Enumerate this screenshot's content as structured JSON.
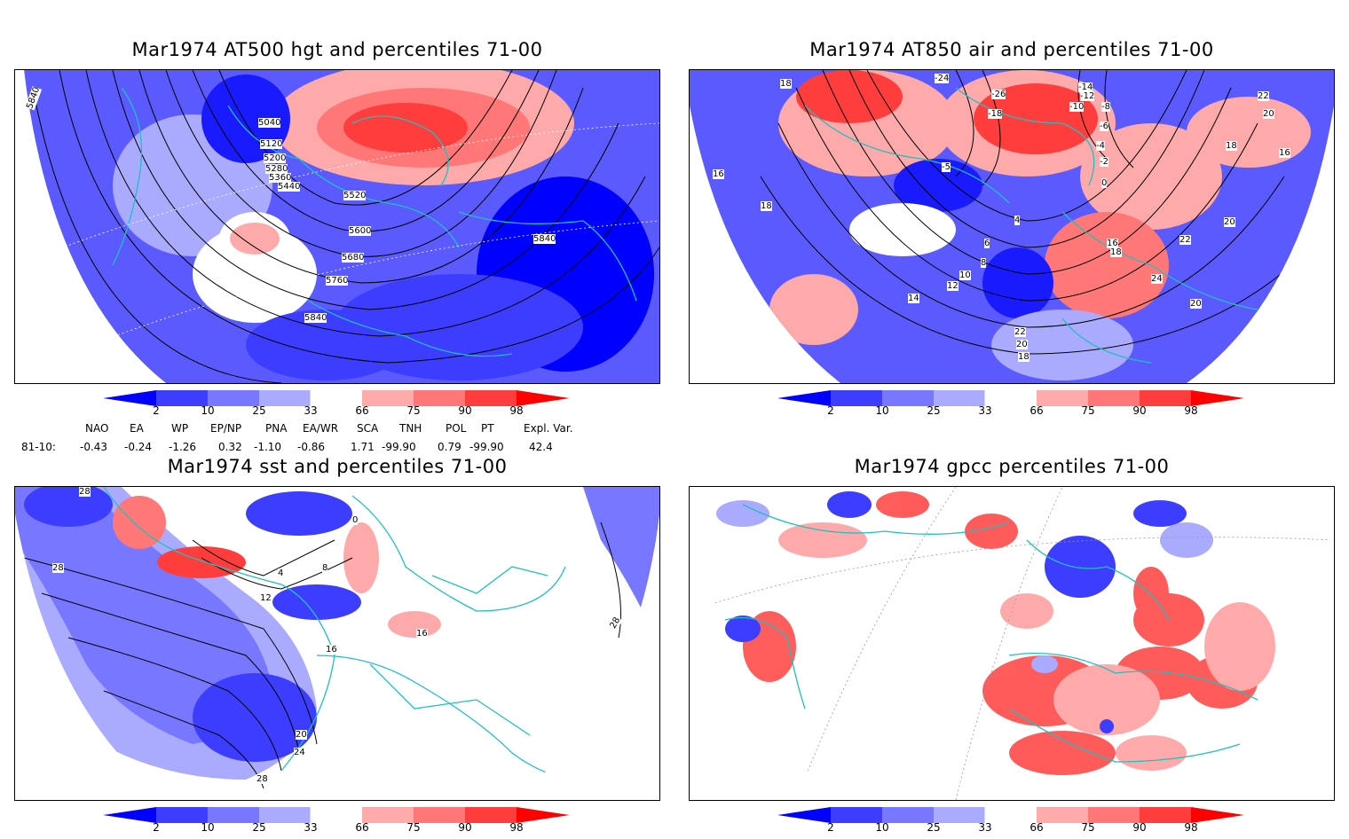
{
  "panels": [
    {
      "title": "Mar1974 AT500 hgt and percentiles 71-00",
      "contour_labels": [
        "5840",
        "5040",
        "5120",
        "5200",
        "5280",
        "5360",
        "5440",
        "5520",
        "5600",
        "5680",
        "5760",
        "5840",
        "5840"
      ]
    },
    {
      "title": "Mar1974 AT850 air and percentiles 71-00",
      "contour_labels": [
        "18",
        "-24",
        "-26",
        "-18",
        "-14",
        "-12",
        "-10",
        "-8",
        "-6",
        "-4",
        "-2",
        "0",
        "22",
        "20",
        "18",
        "16",
        "16",
        "18",
        "-5",
        "4",
        "6",
        "8",
        "10",
        "12",
        "14",
        "16",
        "18",
        "22",
        "24",
        "20",
        "22",
        "20",
        "18",
        "20"
      ]
    },
    {
      "title": "Mar1974 sst and percentiles 71-00",
      "contour_labels": [
        "28",
        "28",
        "0",
        "4",
        "8",
        "12",
        "16",
        "16",
        "20",
        "24",
        "28",
        "28"
      ]
    },
    {
      "title": "Mar1974 gpcc percentiles 71-00",
      "contour_labels": []
    }
  ],
  "colorbar": {
    "ticks": [
      "2",
      "10",
      "25",
      "33",
      "66",
      "75",
      "90",
      "98"
    ],
    "colors": [
      "#0000ff",
      "#3d3dff",
      "#7777ff",
      "#aaaaff",
      "#ffffff",
      "#ffaaaa",
      "#ff7777",
      "#ff3d3d",
      "#ff0000"
    ]
  },
  "indices": {
    "headers": [
      "NAO",
      "EA",
      "WP",
      "EP/NP",
      "PNA",
      "EA/WR",
      "SCA",
      "TNH",
      "POL",
      "PT",
      "Expl. Var."
    ],
    "row_label": "81-10:",
    "values": [
      "-0.43",
      "-0.24",
      "-1.26",
      "0.32",
      "-1.10",
      "-0.86",
      "1.71",
      "-99.90",
      "0.79",
      "-99.90",
      "42.4"
    ]
  },
  "colors": {
    "coast": "#20c0c0",
    "blue": "#2a2aff",
    "red": "#ff2a2a"
  }
}
